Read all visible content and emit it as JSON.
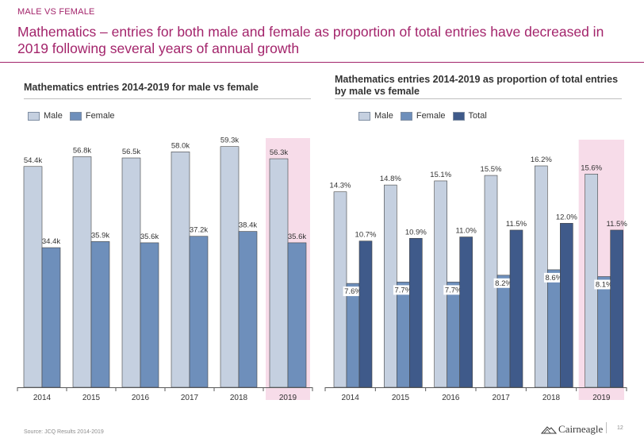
{
  "header": {
    "section_tag": "MALE VS FEMALE",
    "headline": "Mathematics – entries for both male and female as proportion of total entries have decreased in 2019 following several years of annual growth"
  },
  "colors": {
    "male": "#c5d0e0",
    "female": "#6e8fbb",
    "total": "#3f5a8a",
    "highlight": "#f7dce9",
    "accent": "#a3246b"
  },
  "chart_data": [
    {
      "type": "bar",
      "title": "Mathematics entries 2014-2019 for male vs female",
      "categories": [
        "2014",
        "2015",
        "2016",
        "2017",
        "2018",
        "2019"
      ],
      "highlight_category": "2019",
      "legend_position": "top-left",
      "grid": false,
      "ylim": [
        0,
        61
      ],
      "series": [
        {
          "name": "Male",
          "values": [
            54.4,
            56.8,
            56.5,
            58.0,
            59.3,
            56.3
          ],
          "labels": [
            "54.4k",
            "56.8k",
            "56.5k",
            "58.0k",
            "59.3k",
            "56.3k"
          ]
        },
        {
          "name": "Female",
          "values": [
            34.4,
            35.9,
            35.6,
            37.2,
            38.4,
            35.6
          ],
          "labels": [
            "34.4k",
            "35.9k",
            "35.6k",
            "37.2k",
            "38.4k",
            "35.6k"
          ]
        }
      ]
    },
    {
      "type": "bar",
      "title": "Mathematics entries 2014-2019 as proportion of total entries by male vs female",
      "categories": [
        "2014",
        "2015",
        "2016",
        "2017",
        "2018",
        "2019"
      ],
      "highlight_category": "2019",
      "legend_position": "top-left",
      "grid": false,
      "ylim": [
        0,
        18
      ],
      "series": [
        {
          "name": "Male",
          "values": [
            14.3,
            14.8,
            15.1,
            15.5,
            16.2,
            15.6
          ],
          "labels": [
            "14.3%",
            "14.8%",
            "15.1%",
            "15.5%",
            "16.2%",
            "15.6%"
          ]
        },
        {
          "name": "Female",
          "values": [
            7.6,
            7.7,
            7.7,
            8.2,
            8.6,
            8.1
          ],
          "labels": [
            "7.6%",
            "7.7%",
            "7.7%",
            "8.2%",
            "8.6%",
            "8.1%"
          ]
        },
        {
          "name": "Total",
          "values": [
            10.7,
            10.9,
            11.0,
            11.5,
            12.0,
            11.5
          ],
          "labels": [
            "10.7%",
            "10.9%",
            "11.0%",
            "11.5%",
            "12.0%",
            "11.5%"
          ]
        }
      ]
    }
  ],
  "footer": {
    "source": "Source: JCQ Results 2014-2019",
    "brand": "Cairneagle",
    "page_number": "12"
  }
}
